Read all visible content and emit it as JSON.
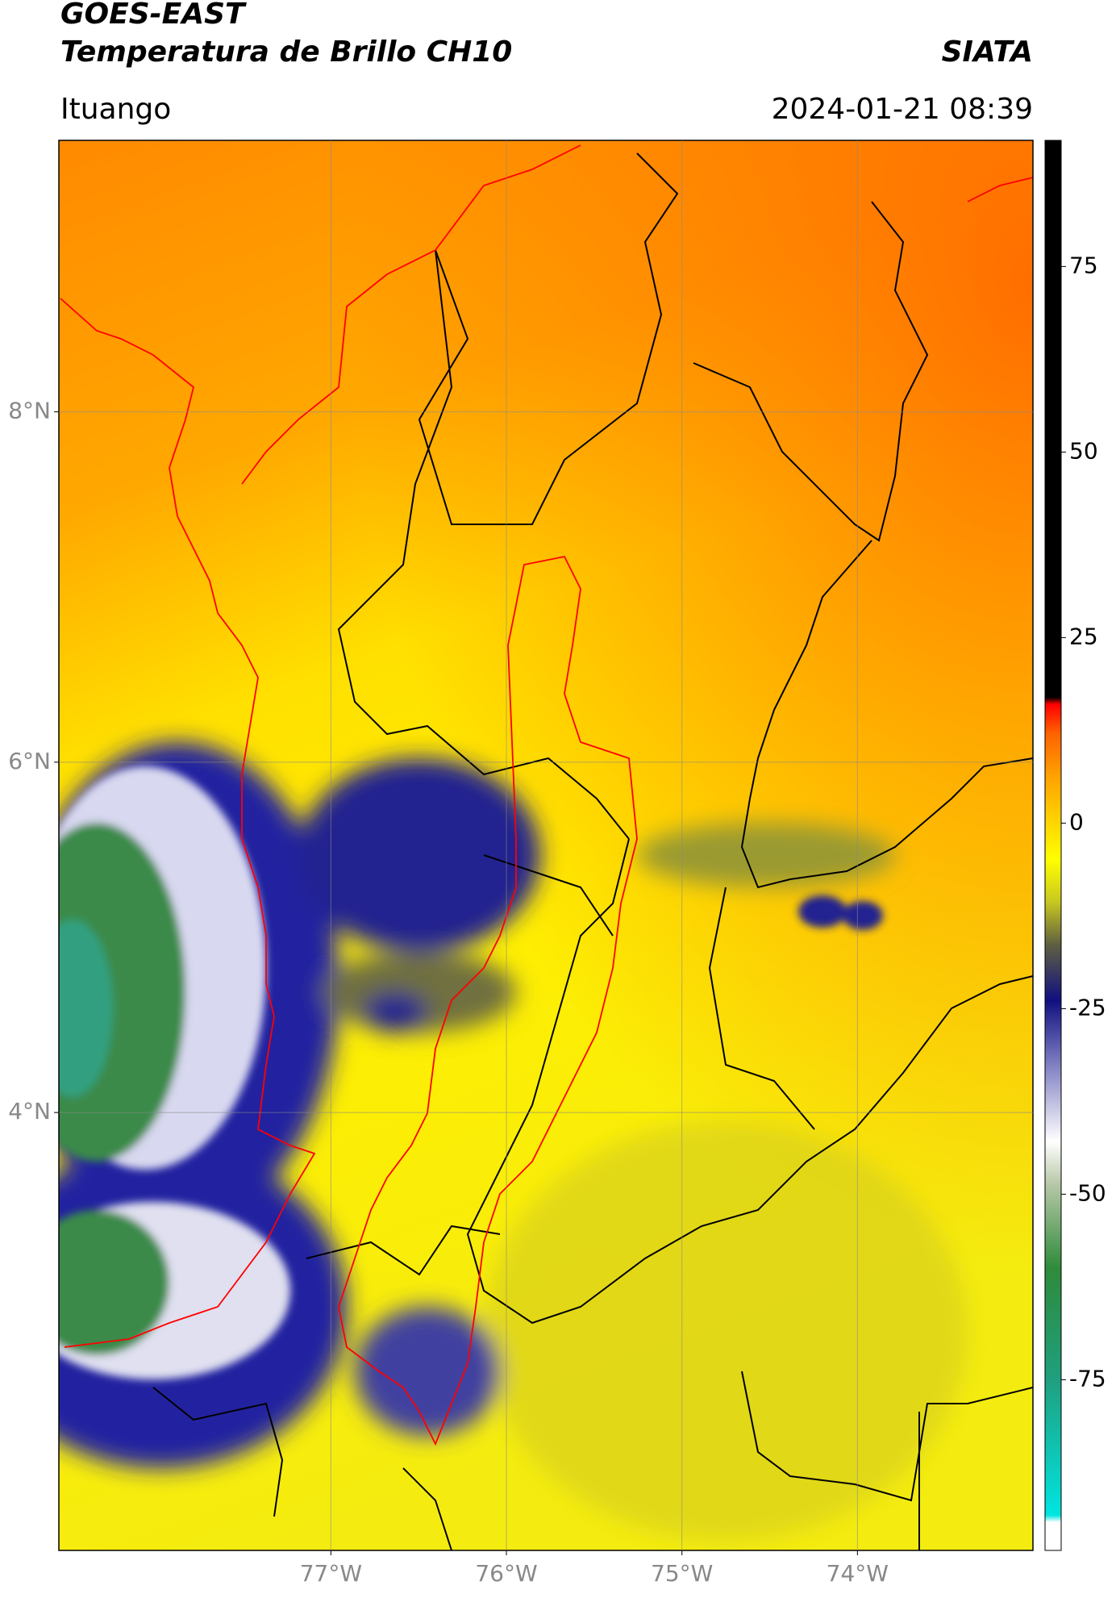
{
  "header": {
    "title": "GOES-EAST",
    "subtitle": "Temperatura de Brillo CH10",
    "organization": "SIATA",
    "location": "Ituango",
    "datetime": "2024-01-21 08:39"
  },
  "map": {
    "xlim": [
      -78.55,
      -73.0
    ],
    "ylim": [
      1.5,
      9.55
    ],
    "xticks": [
      {
        "value": -77,
        "label": "77°W"
      },
      {
        "value": -76,
        "label": "76°W"
      },
      {
        "value": -75,
        "label": "75°W"
      },
      {
        "value": -74,
        "label": "74°W"
      }
    ],
    "yticks": [
      {
        "value": 4,
        "label": "4°N"
      },
      {
        "value": 6,
        "label": "6°N"
      },
      {
        "value": 8,
        "label": "8°N"
      }
    ],
    "grid": true
  },
  "colorbar": {
    "lim": [
      -98,
      92
    ],
    "ticks": [
      -75,
      -50,
      -25,
      0,
      25,
      50,
      75
    ]
  }
}
